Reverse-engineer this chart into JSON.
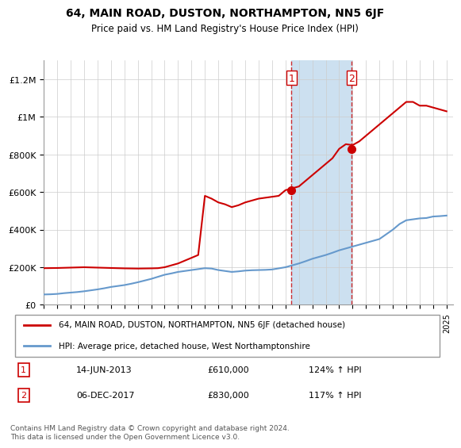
{
  "title": "64, MAIN ROAD, DUSTON, NORTHAMPTON, NN5 6JF",
  "subtitle": "Price paid vs. HM Land Registry's House Price Index (HPI)",
  "ylabel_ticks": [
    "£0",
    "£200K",
    "£400K",
    "£600K",
    "£800K",
    "£1M",
    "£1.2M"
  ],
  "ytick_values": [
    0,
    200000,
    400000,
    600000,
    800000,
    1000000,
    1200000
  ],
  "ylim": [
    0,
    1300000
  ],
  "xlim_start": 1995,
  "xlim_end": 2025.5,
  "legend_line1": "64, MAIN ROAD, DUSTON, NORTHAMPTON, NN5 6JF (detached house)",
  "legend_line2": "HPI: Average price, detached house, West Northamptonshire",
  "transaction1_label": "1",
  "transaction1_date": "14-JUN-2013",
  "transaction1_price": "£610,000",
  "transaction1_hpi": "124% ↑ HPI",
  "transaction1_year": 2013.45,
  "transaction2_label": "2",
  "transaction2_date": "06-DEC-2017",
  "transaction2_price": "£830,000",
  "transaction2_hpi": "117% ↑ HPI",
  "transaction2_year": 2017.92,
  "red_color": "#cc0000",
  "blue_color": "#6699cc",
  "shaded_color": "#cce0f0",
  "footer": "Contains HM Land Registry data © Crown copyright and database right 2024.\nThis data is licensed under the Open Government Licence v3.0.",
  "hpi_years": [
    1995,
    1996,
    1997,
    1998,
    1999,
    2000,
    2001,
    2002,
    2003,
    2004,
    2005,
    2006,
    2007,
    2008,
    2009,
    2010,
    2011,
    2012,
    2013,
    2014,
    2015,
    2016,
    2017,
    2018,
    2019,
    2020,
    2021,
    2022,
    2023,
    2024,
    2025
  ],
  "hpi_values": [
    55000,
    58000,
    65000,
    72000,
    82000,
    95000,
    105000,
    120000,
    138000,
    160000,
    175000,
    185000,
    195000,
    185000,
    175000,
    182000,
    185000,
    188000,
    200000,
    220000,
    245000,
    265000,
    290000,
    310000,
    330000,
    350000,
    400000,
    450000,
    460000,
    470000,
    475000
  ],
  "hpi_years_detail": [
    1995.0,
    1995.5,
    1996.0,
    1996.5,
    1997.0,
    1997.5,
    1998.0,
    1998.5,
    1999.0,
    1999.5,
    2000.0,
    2000.5,
    2001.0,
    2001.5,
    2002.0,
    2002.5,
    2003.0,
    2003.5,
    2004.0,
    2004.5,
    2005.0,
    2005.5,
    2006.0,
    2006.5,
    2007.0,
    2007.5,
    2008.0,
    2008.5,
    2009.0,
    2009.5,
    2010.0,
    2010.5,
    2011.0,
    2011.5,
    2012.0,
    2012.5,
    2013.0,
    2013.5,
    2014.0,
    2014.5,
    2015.0,
    2015.5,
    2016.0,
    2016.5,
    2017.0,
    2017.5,
    2018.0,
    2018.5,
    2019.0,
    2019.5,
    2020.0,
    2020.5,
    2021.0,
    2021.5,
    2022.0,
    2022.5,
    2023.0,
    2023.5,
    2024.0,
    2024.5,
    2025.0
  ],
  "hpi_values_detail": [
    55000,
    56000,
    58000,
    62000,
    65000,
    68000,
    72000,
    77000,
    82000,
    88000,
    95000,
    100000,
    105000,
    112000,
    120000,
    129000,
    138000,
    149000,
    160000,
    167000,
    175000,
    180000,
    185000,
    190000,
    195000,
    193000,
    185000,
    180000,
    175000,
    178000,
    182000,
    184000,
    185000,
    186000,
    188000,
    194000,
    200000,
    210000,
    220000,
    232000,
    245000,
    255000,
    265000,
    277000,
    290000,
    300000,
    310000,
    320000,
    330000,
    340000,
    350000,
    375000,
    400000,
    430000,
    450000,
    455000,
    460000,
    462000,
    470000,
    472000,
    475000
  ],
  "property_years": [
    1995.0,
    1995.5,
    1996.0,
    1996.5,
    1997.0,
    1997.5,
    1998.0,
    1998.5,
    1999.0,
    1999.5,
    2000.0,
    2000.5,
    2001.0,
    2001.5,
    2002.0,
    2002.5,
    2003.0,
    2003.5,
    2004.0,
    2004.5,
    2005.0,
    2005.5,
    2006.0,
    2006.5,
    2007.0,
    2007.5,
    2008.0,
    2008.5,
    2009.0,
    2009.5,
    2010.0,
    2010.5,
    2011.0,
    2011.5,
    2012.0,
    2012.5,
    2013.0,
    2013.5,
    2014.0,
    2014.5,
    2015.0,
    2015.5,
    2016.0,
    2016.5,
    2017.0,
    2017.5,
    2018.0,
    2018.5,
    2019.0,
    2019.5,
    2020.0,
    2020.5,
    2021.0,
    2021.5,
    2022.0,
    2022.5,
    2023.0,
    2023.5,
    2024.0,
    2024.5,
    2025.0
  ],
  "property_values": [
    195000,
    195500,
    196000,
    197000,
    198000,
    199000,
    200000,
    199000,
    198000,
    197000,
    196000,
    195000,
    194000,
    193500,
    193000,
    193500,
    194000,
    195000,
    200000,
    210000,
    220000,
    235000,
    250000,
    265000,
    580000,
    565000,
    545000,
    535000,
    520000,
    530000,
    545000,
    555000,
    565000,
    570000,
    575000,
    580000,
    610000,
    620000,
    630000,
    660000,
    690000,
    720000,
    750000,
    780000,
    830000,
    855000,
    850000,
    870000,
    900000,
    930000,
    960000,
    990000,
    1020000,
    1050000,
    1080000,
    1080000,
    1060000,
    1060000,
    1050000,
    1040000,
    1030000
  ],
  "xtick_years": [
    1995,
    1996,
    1997,
    1998,
    1999,
    2000,
    2001,
    2002,
    2003,
    2004,
    2005,
    2006,
    2007,
    2008,
    2009,
    2010,
    2011,
    2012,
    2013,
    2014,
    2015,
    2016,
    2017,
    2018,
    2019,
    2020,
    2021,
    2022,
    2023,
    2024,
    2025
  ]
}
